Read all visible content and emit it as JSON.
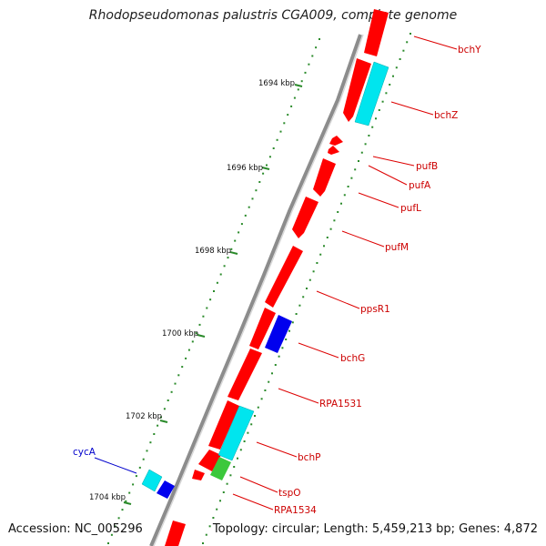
{
  "title": "Rhodopseudomonas palustris CGA009, complete genome",
  "footer": {
    "accession": "Accession: NC_005296",
    "summary": "Topology: circular; Length: 5,459,213 bp; Genes: 4,872"
  },
  "colors": {
    "backbone": "#8c8c8c",
    "tick": "#2a8a2a",
    "gene_red": "#ff0000",
    "gene_cyan": "#00e5ee",
    "gene_blue": "#0000ee",
    "gene_green": "#3cc83c",
    "label_red": "#cc0000",
    "label_blue": "#0000cc"
  },
  "ticks": [
    {
      "label": "1694 kbp"
    },
    {
      "label": "1696 kbp"
    },
    {
      "label": "1698 kbp"
    },
    {
      "label": "1700 kbp"
    },
    {
      "label": "1702 kbp"
    },
    {
      "label": "1704 kbp"
    }
  ],
  "gene_labels": [
    {
      "label": "bchY"
    },
    {
      "label": "bchZ"
    },
    {
      "label": "pufB"
    },
    {
      "label": "pufA"
    },
    {
      "label": "pufL"
    },
    {
      "label": "pufM"
    },
    {
      "label": "ppsR1"
    },
    {
      "label": "bchG"
    },
    {
      "label": "RPA1531"
    },
    {
      "label": "bchP"
    },
    {
      "label": "tspO"
    },
    {
      "label": "RPA1534"
    },
    {
      "label": "cycA"
    }
  ]
}
